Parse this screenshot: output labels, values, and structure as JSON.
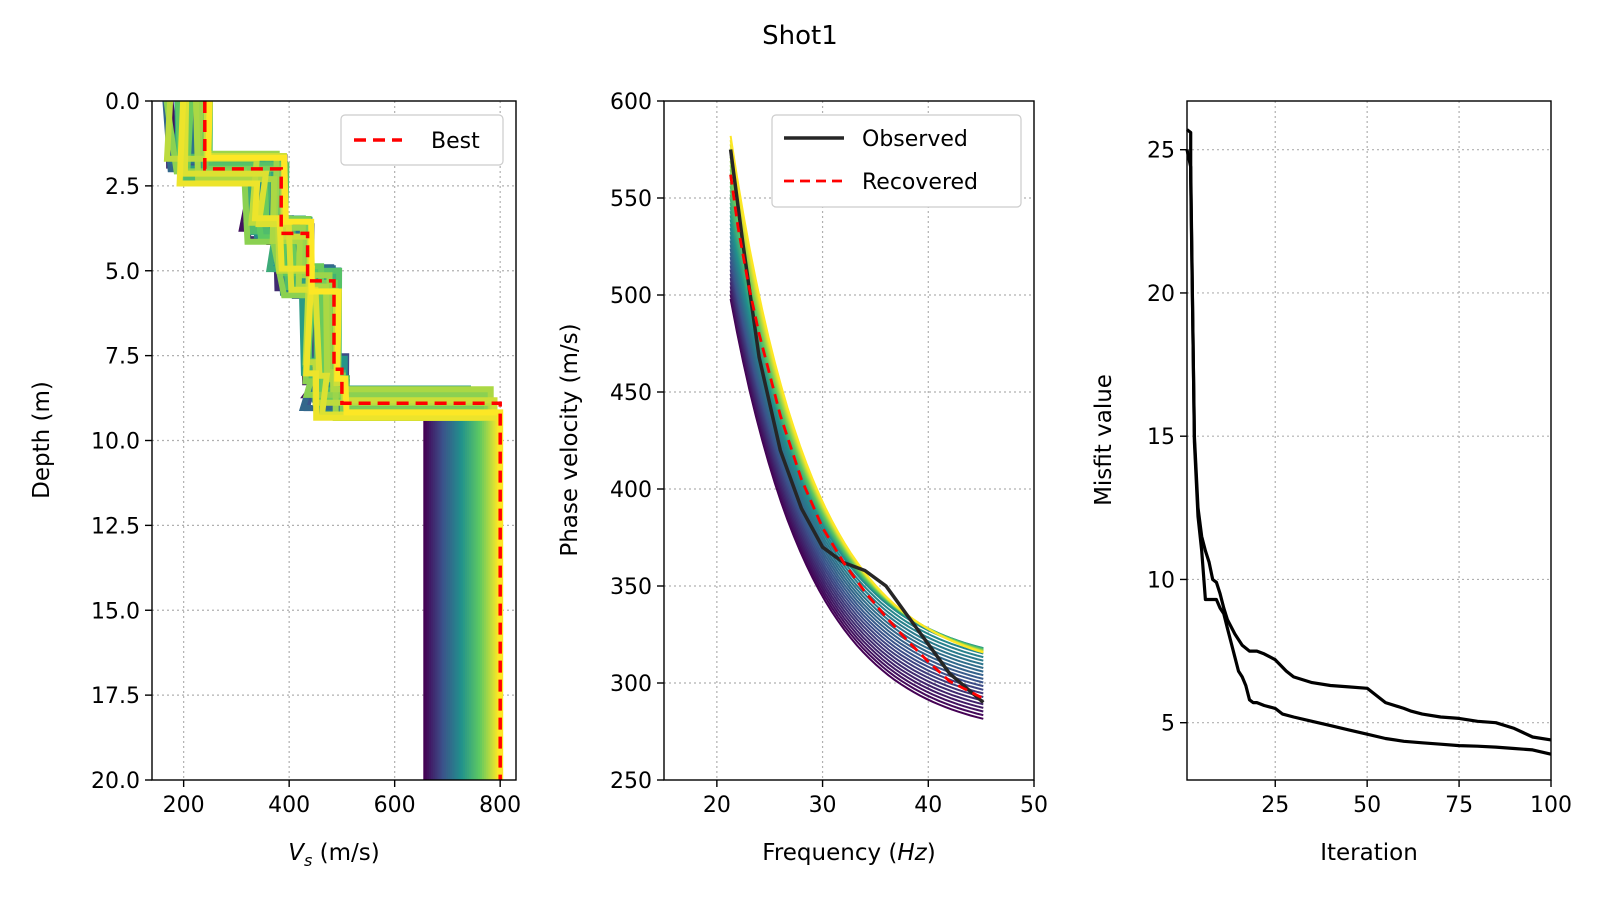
{
  "figure": {
    "title": "Shot1",
    "colors": {
      "best": "#ff0000",
      "observed": "#262626",
      "recovered": "#ff0000",
      "misfit": "#000000",
      "ensemble_low": "#440154",
      "ensemble_mid": "#21918c",
      "ensemble_high": "#fde725"
    }
  },
  "chart_data": [
    {
      "type": "line",
      "name": "vs-profile",
      "xlabel": "V_s (m/s)",
      "xlabel_main": "V",
      "xlabel_sub": "s",
      "xlabel_rest": " (m/s)",
      "ylabel": "Depth (m)",
      "xlim": [
        140,
        830
      ],
      "ylim": [
        20.0,
        0.0
      ],
      "y_inverted": true,
      "xticks": [
        200,
        400,
        600,
        800
      ],
      "xtick_labels": [
        "200",
        "400",
        "600",
        "800"
      ],
      "yticks": [
        0.0,
        2.5,
        5.0,
        7.5,
        10.0,
        12.5,
        15.0,
        17.5,
        20.0
      ],
      "ytick_labels": [
        "0.0",
        "2.5",
        "5.0",
        "7.5",
        "10.0",
        "12.5",
        "15.0",
        "17.5",
        "20.0"
      ],
      "grid": true,
      "legend_position": "top-right",
      "legend": [
        {
          "label": "Best",
          "style": "dashed",
          "color": "#ff0000"
        }
      ],
      "best_profile": {
        "vs": [
          240,
          240,
          385,
          385,
          435,
          435,
          485,
          485,
          500,
          500,
          800,
          800
        ],
        "depth": [
          0.0,
          2.0,
          2.0,
          3.9,
          3.9,
          5.3,
          5.3,
          7.9,
          7.9,
          8.9,
          8.9,
          20.0
        ]
      },
      "ensemble": {
        "count": 40,
        "colormap": "viridis",
        "vs_offsets": [
          -75,
          10
        ],
        "halfspace_vs_range": [
          660,
          800
        ],
        "layer_depth_jitter": 0.9
      }
    },
    {
      "type": "line",
      "name": "dispersion",
      "xlabel": "Frequency (Hz)",
      "xlabel_main": "Frequency (",
      "xlabel_italic": "Hz",
      "xlabel_rest": ")",
      "ylabel": "Phase velocity (m/s)",
      "xlim": [
        15,
        50
      ],
      "ylim": [
        250,
        600
      ],
      "xticks": [
        20,
        30,
        40,
        50
      ],
      "xtick_labels": [
        "20",
        "30",
        "40",
        "50"
      ],
      "yticks": [
        250,
        300,
        350,
        400,
        450,
        500,
        550,
        600
      ],
      "ytick_labels": [
        "250",
        "300",
        "350",
        "400",
        "450",
        "500",
        "550",
        "600"
      ],
      "grid": true,
      "legend_position": "top-right",
      "legend": [
        {
          "label": "Observed",
          "style": "solid",
          "color": "#262626"
        },
        {
          "label": "Recovered",
          "style": "dashed",
          "color": "#ff0000"
        }
      ],
      "observed": {
        "x": [
          21.3,
          22.5,
          24,
          26,
          28,
          30,
          32,
          34,
          36,
          38,
          40,
          42,
          45.2
        ],
        "y": [
          575,
          525,
          468,
          420,
          390,
          370,
          362,
          358,
          350,
          335,
          320,
          305,
          290
        ]
      },
      "recovered": {
        "x": [
          21.3,
          22,
          23,
          24,
          26,
          28,
          30,
          32,
          34,
          36,
          38,
          40,
          42,
          45.2
        ],
        "y": [
          562,
          535,
          505,
          480,
          438,
          405,
          380,
          362,
          347,
          334,
          322,
          311,
          301,
          292
        ]
      },
      "ensemble": {
        "count": 40,
        "colormap": "viridis",
        "start_range": [
          498,
          582
        ],
        "end_range": [
          273,
          330
        ]
      }
    },
    {
      "type": "line",
      "name": "misfit",
      "xlabel": "Iteration",
      "ylabel": "Misfit value",
      "xlim": [
        1,
        100
      ],
      "ylim": [
        3.0,
        26.7
      ],
      "xticks": [
        25,
        50,
        75,
        100
      ],
      "xtick_labels": [
        "25",
        "50",
        "75",
        "100"
      ],
      "yticks": [
        5,
        10,
        15,
        20,
        25
      ],
      "ytick_labels": [
        "5",
        "10",
        "15",
        "20",
        "25"
      ],
      "grid": true,
      "series": [
        {
          "x": [
            1,
            2,
            2,
            3,
            4,
            5,
            6,
            7,
            8,
            8,
            9,
            10,
            11,
            12,
            14,
            16,
            18,
            20,
            22,
            25,
            28,
            30,
            35,
            40,
            45,
            50,
            55,
            60,
            62,
            65,
            70,
            75,
            80,
            85,
            90,
            95,
            100
          ],
          "y": [
            25.7,
            25.6,
            24.0,
            15.0,
            12.5,
            11.5,
            11.0,
            10.6,
            10.0,
            10.0,
            9.9,
            9.5,
            9.0,
            8.6,
            8.1,
            7.7,
            7.5,
            7.5,
            7.4,
            7.2,
            6.8,
            6.6,
            6.4,
            6.3,
            6.25,
            6.2,
            5.7,
            5.5,
            5.4,
            5.3,
            5.2,
            5.15,
            5.05,
            5.0,
            4.8,
            4.5,
            4.4
          ]
        },
        {
          "x": [
            1,
            2,
            3,
            4,
            5,
            6,
            7,
            8,
            9,
            10,
            11,
            12,
            13,
            14,
            15,
            16,
            17,
            18,
            19,
            20,
            22,
            25,
            27,
            30,
            35,
            40,
            45,
            50,
            55,
            60,
            65,
            70,
            75,
            80,
            85,
            90,
            95,
            100
          ],
          "y": [
            25.0,
            24.4,
            14.8,
            12.2,
            11.0,
            9.3,
            9.3,
            9.3,
            9.3,
            9.0,
            8.8,
            8.3,
            7.8,
            7.3,
            6.8,
            6.6,
            6.3,
            5.8,
            5.7,
            5.7,
            5.6,
            5.5,
            5.3,
            5.2,
            5.05,
            4.9,
            4.75,
            4.6,
            4.45,
            4.35,
            4.3,
            4.25,
            4.2,
            4.18,
            4.15,
            4.1,
            4.05,
            3.9
          ]
        }
      ]
    }
  ]
}
